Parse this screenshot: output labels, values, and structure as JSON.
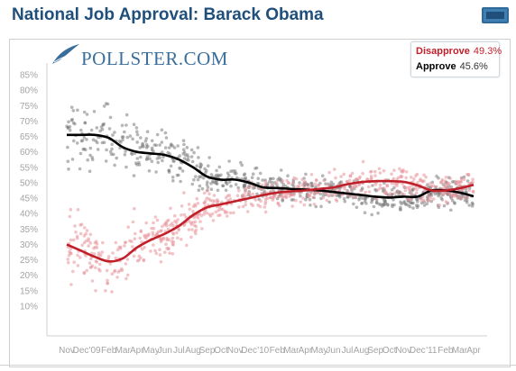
{
  "header": {
    "title": "National Job Approval: Barack Obama"
  },
  "logo": {
    "text": "POLLSTER.COM"
  },
  "legend": {
    "items": [
      {
        "name": "Disapprove",
        "value": "49.3%",
        "color": "#c0202a"
      },
      {
        "name": "Approve",
        "value": "45.6%",
        "color": "#000000"
      }
    ]
  },
  "icons": {
    "expand": "expand-icon",
    "logo_mark": "quill-logo-icon"
  },
  "chart_data": {
    "type": "scatter",
    "title": "National Job Approval: Barack Obama",
    "xlabel": "",
    "ylabel": "",
    "ylim": [
      5,
      87
    ],
    "y_ticks": [
      "10%",
      "15%",
      "20%",
      "25%",
      "30%",
      "35%",
      "40%",
      "45%",
      "50%",
      "55%",
      "60%",
      "65%",
      "70%",
      "75%",
      "80%",
      "85%"
    ],
    "x_ticks": [
      "Nov",
      "Dec",
      "'09",
      "Feb",
      "Mar",
      "Apr",
      "May",
      "Jun",
      "Jul",
      "Aug",
      "Sep",
      "Oct",
      "Nov",
      "Dec",
      "'10",
      "Feb",
      "Mar",
      "Apr",
      "May",
      "Jun",
      "Jul",
      "Aug",
      "Sep",
      "Oct",
      "Nov",
      "Dec",
      "'11",
      "Feb",
      "Mar",
      "Apr"
    ],
    "grid": false,
    "legend_position": "top-right",
    "series": [
      {
        "name": "Approve",
        "color": "#000000",
        "scatter_color": "#7a7a7a",
        "trend": [
          [
            0,
            65.5
          ],
          [
            1,
            65.5
          ],
          [
            2,
            65.5
          ],
          [
            3,
            64.5
          ],
          [
            4,
            61.5
          ],
          [
            5,
            60
          ],
          [
            6,
            59.5
          ],
          [
            7,
            59
          ],
          [
            8,
            57.5
          ],
          [
            9,
            55
          ],
          [
            10,
            52
          ],
          [
            11,
            51
          ],
          [
            12,
            51
          ],
          [
            13,
            50
          ],
          [
            14,
            48.5
          ],
          [
            15,
            48.3
          ],
          [
            16,
            48
          ],
          [
            17,
            47.8
          ],
          [
            18,
            47.5
          ],
          [
            19,
            47
          ],
          [
            20,
            46.5
          ],
          [
            21,
            46
          ],
          [
            22,
            45.5
          ],
          [
            23,
            45.2
          ],
          [
            24,
            45.5
          ],
          [
            25,
            45.5
          ],
          [
            26,
            47.5
          ],
          [
            27,
            47.5
          ],
          [
            28,
            46.8
          ],
          [
            29,
            45.6
          ]
        ]
      },
      {
        "name": "Disapprove",
        "color": "#c0202a",
        "scatter_color": "#e8939b",
        "trend": [
          [
            0,
            30
          ],
          [
            1,
            28
          ],
          [
            2,
            26
          ],
          [
            3,
            24.5
          ],
          [
            4,
            25.5
          ],
          [
            5,
            29
          ],
          [
            6,
            31.5
          ],
          [
            7,
            33.5
          ],
          [
            8,
            36
          ],
          [
            9,
            39.5
          ],
          [
            10,
            42
          ],
          [
            11,
            43
          ],
          [
            12,
            44
          ],
          [
            13,
            45
          ],
          [
            14,
            46
          ],
          [
            15,
            46.8
          ],
          [
            16,
            47.2
          ],
          [
            17,
            47.5
          ],
          [
            18,
            48
          ],
          [
            19,
            48.5
          ],
          [
            20,
            49.5
          ],
          [
            21,
            50.2
          ],
          [
            22,
            50.5
          ],
          [
            23,
            50.5
          ],
          [
            24,
            50.3
          ],
          [
            25,
            49.2
          ],
          [
            26,
            47.5
          ],
          [
            27,
            47.5
          ],
          [
            28,
            48.2
          ],
          [
            29,
            49.3
          ]
        ]
      }
    ]
  }
}
